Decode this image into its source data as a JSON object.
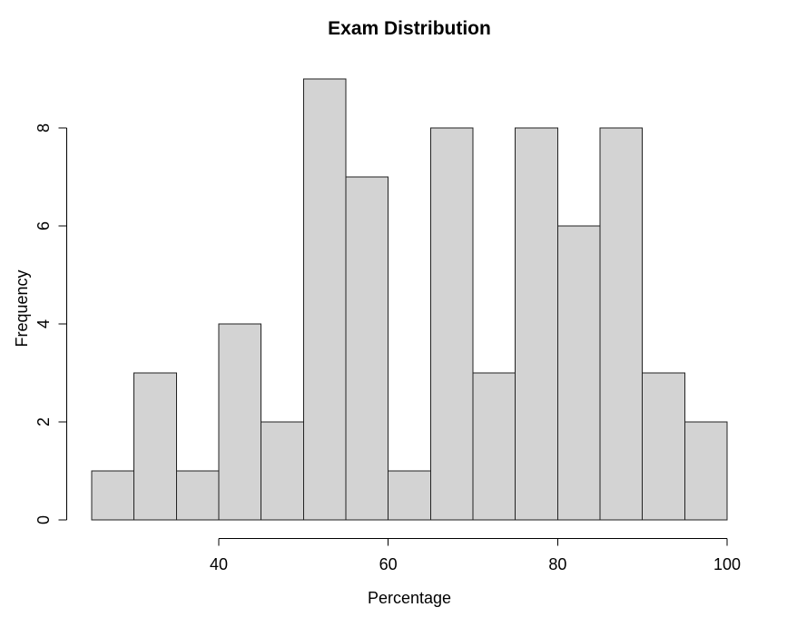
{
  "chart_data": {
    "type": "bar",
    "subtype": "histogram",
    "title": "Exam Distribution",
    "xlabel": "Percentage",
    "ylabel": "Frequency",
    "bin_start": 25,
    "bin_width": 5,
    "categories": [
      "25-30",
      "30-35",
      "35-40",
      "40-45",
      "45-50",
      "50-55",
      "55-60",
      "60-65",
      "65-70",
      "70-75",
      "75-80",
      "80-85",
      "85-90",
      "90-95",
      "95-100"
    ],
    "values": [
      1,
      3,
      1,
      4,
      2,
      9,
      7,
      1,
      8,
      3,
      8,
      6,
      8,
      3,
      2
    ],
    "x_ticks": [
      40,
      60,
      80,
      100
    ],
    "y_ticks": [
      0,
      2,
      4,
      6,
      8
    ],
    "xlim": [
      25,
      100
    ],
    "ylim": [
      0,
      9
    ],
    "grid": false,
    "legend": false,
    "colors": {
      "bar_fill": "#d3d3d3",
      "bar_border": "#222222",
      "axis": "#000000",
      "text": "#000000",
      "background": "#ffffff"
    }
  }
}
